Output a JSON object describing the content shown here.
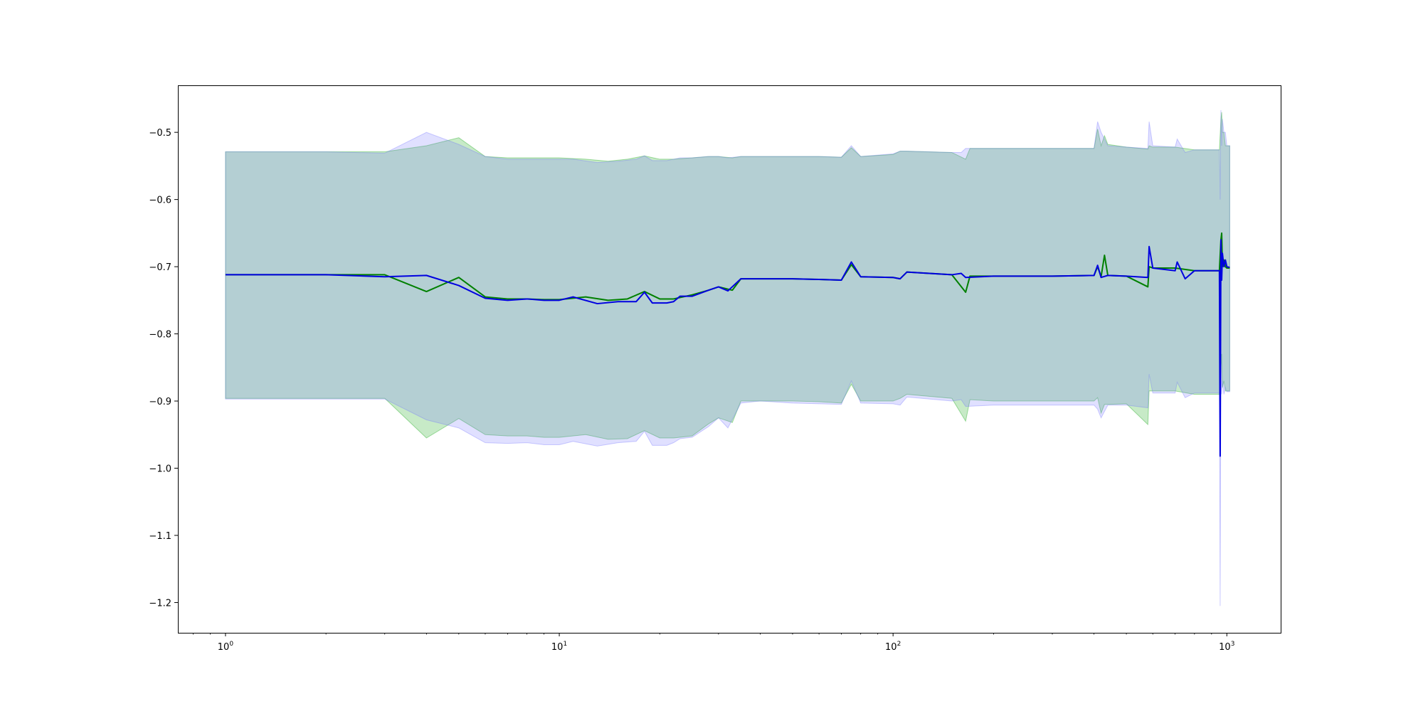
{
  "chart_data": {
    "type": "line",
    "title": "",
    "xlabel": "",
    "ylabel": "",
    "xscale": "log",
    "xlim": [
      0.72,
      1450
    ],
    "ylim": [
      -1.245,
      -0.43
    ],
    "grid": false,
    "legend": "none",
    "x_ticks": [
      {
        "value": 1,
        "base": "10",
        "exp": "0"
      },
      {
        "value": 10,
        "base": "10",
        "exp": "1"
      },
      {
        "value": 100,
        "base": "10",
        "exp": "2"
      },
      {
        "value": 1000,
        "base": "10",
        "exp": "3"
      }
    ],
    "y_ticks": [
      {
        "value": -0.5,
        "label": "−0.5"
      },
      {
        "value": -0.6,
        "label": "−0.6"
      },
      {
        "value": -0.7,
        "label": "−0.7"
      },
      {
        "value": -0.8,
        "label": "−0.8"
      },
      {
        "value": -0.9,
        "label": "−0.9"
      },
      {
        "value": -1.0,
        "label": "−1.0"
      },
      {
        "value": -1.1,
        "label": "−1.1"
      },
      {
        "value": -1.2,
        "label": "−1.2"
      }
    ],
    "series": [
      {
        "color": "#008000",
        "band_color": "#00a000",
        "x": [
          1,
          2,
          3,
          4,
          5,
          6,
          7,
          8,
          9,
          10,
          12,
          14,
          16,
          18,
          20,
          22,
          25,
          28,
          30,
          33,
          35,
          40,
          50,
          60,
          70,
          75,
          80,
          100,
          105,
          110,
          150,
          165,
          170,
          200,
          300,
          400,
          410,
          420,
          430,
          440,
          500,
          580,
          585,
          600,
          700,
          800,
          950,
          960,
          965,
          970,
          980,
          990,
          1000,
          1020
        ],
        "y": [
          -0.712,
          -0.712,
          -0.712,
          -0.737,
          -0.716,
          -0.745,
          -0.748,
          -0.748,
          -0.749,
          -0.749,
          -0.745,
          -0.75,
          -0.748,
          -0.737,
          -0.748,
          -0.748,
          -0.742,
          -0.735,
          -0.73,
          -0.735,
          -0.718,
          -0.718,
          -0.718,
          -0.719,
          -0.72,
          -0.697,
          -0.715,
          -0.716,
          -0.718,
          -0.708,
          -0.712,
          -0.738,
          -0.714,
          -0.714,
          -0.714,
          -0.713,
          -0.7,
          -0.715,
          -0.683,
          -0.713,
          -0.714,
          -0.73,
          -0.7,
          -0.702,
          -0.702,
          -0.706,
          -0.706,
          -0.66,
          -0.65,
          -0.7,
          -0.69,
          -0.7,
          -0.702,
          -0.702
        ],
        "upper": [
          -0.529,
          -0.529,
          -0.529,
          -0.52,
          -0.508,
          -0.536,
          -0.538,
          -0.538,
          -0.538,
          -0.538,
          -0.54,
          -0.543,
          -0.54,
          -0.535,
          -0.54,
          -0.54,
          -0.538,
          -0.536,
          -0.536,
          -0.538,
          -0.536,
          -0.536,
          -0.536,
          -0.536,
          -0.537,
          -0.523,
          -0.536,
          -0.533,
          -0.528,
          -0.528,
          -0.53,
          -0.54,
          -0.524,
          -0.524,
          -0.524,
          -0.524,
          -0.495,
          -0.52,
          -0.505,
          -0.518,
          -0.522,
          -0.525,
          -0.52,
          -0.522,
          -0.522,
          -0.526,
          -0.526,
          -0.48,
          -0.47,
          -0.5,
          -0.5,
          -0.52,
          -0.52,
          -0.52
        ],
        "lower": [
          -0.896,
          -0.896,
          -0.896,
          -0.955,
          -0.926,
          -0.95,
          -0.952,
          -0.952,
          -0.954,
          -0.954,
          -0.95,
          -0.957,
          -0.956,
          -0.944,
          -0.955,
          -0.955,
          -0.952,
          -0.934,
          -0.925,
          -0.932,
          -0.9,
          -0.9,
          -0.9,
          -0.901,
          -0.903,
          -0.875,
          -0.9,
          -0.9,
          -0.896,
          -0.89,
          -0.896,
          -0.93,
          -0.898,
          -0.9,
          -0.9,
          -0.9,
          -0.895,
          -0.918,
          -0.905,
          -0.905,
          -0.904,
          -0.935,
          -0.885,
          -0.885,
          -0.885,
          -0.89,
          -0.89,
          -0.85,
          -0.83,
          -0.88,
          -0.87,
          -0.885,
          -0.885,
          -0.885
        ]
      },
      {
        "color": "#0000e0",
        "band_color": "#7070ff",
        "x": [
          1,
          2,
          3,
          4,
          5,
          6,
          7,
          8,
          9,
          10,
          11,
          13,
          15,
          17,
          18,
          19,
          21,
          22,
          23,
          25,
          28,
          30,
          32,
          35,
          40,
          50,
          60,
          70,
          75,
          80,
          100,
          105,
          110,
          150,
          160,
          165,
          200,
          300,
          400,
          410,
          420,
          440,
          500,
          580,
          585,
          600,
          700,
          710,
          750,
          800,
          950,
          955,
          960,
          965,
          970,
          980,
          990,
          1000,
          1020
        ],
        "y": [
          -0.712,
          -0.712,
          -0.715,
          -0.713,
          -0.728,
          -0.747,
          -0.75,
          -0.748,
          -0.75,
          -0.75,
          -0.745,
          -0.755,
          -0.752,
          -0.752,
          -0.738,
          -0.754,
          -0.754,
          -0.752,
          -0.744,
          -0.744,
          -0.735,
          -0.73,
          -0.736,
          -0.718,
          -0.718,
          -0.718,
          -0.719,
          -0.72,
          -0.693,
          -0.715,
          -0.716,
          -0.718,
          -0.708,
          -0.712,
          -0.71,
          -0.716,
          -0.714,
          -0.714,
          -0.713,
          -0.698,
          -0.716,
          -0.713,
          -0.714,
          -0.716,
          -0.67,
          -0.702,
          -0.706,
          -0.693,
          -0.718,
          -0.706,
          -0.706,
          -0.982,
          -0.66,
          -0.72,
          -0.68,
          -0.7,
          -0.69,
          -0.7,
          -0.701
        ],
        "upper": [
          -0.529,
          -0.529,
          -0.531,
          -0.5,
          -0.518,
          -0.536,
          -0.54,
          -0.54,
          -0.54,
          -0.54,
          -0.54,
          -0.545,
          -0.543,
          -0.54,
          -0.535,
          -0.542,
          -0.542,
          -0.54,
          -0.538,
          -0.538,
          -0.536,
          -0.536,
          -0.538,
          -0.536,
          -0.536,
          -0.536,
          -0.536,
          -0.537,
          -0.52,
          -0.536,
          -0.532,
          -0.528,
          -0.528,
          -0.53,
          -0.53,
          -0.524,
          -0.524,
          -0.524,
          -0.524,
          -0.484,
          -0.5,
          -0.52,
          -0.522,
          -0.524,
          -0.484,
          -0.52,
          -0.522,
          -0.51,
          -0.53,
          -0.526,
          -0.526,
          -0.6,
          -0.467,
          -0.52,
          -0.48,
          -0.5,
          -0.5,
          -0.52,
          -0.52
        ],
        "lower": [
          -0.897,
          -0.897,
          -0.897,
          -0.928,
          -0.94,
          -0.962,
          -0.963,
          -0.962,
          -0.965,
          -0.965,
          -0.96,
          -0.967,
          -0.962,
          -0.96,
          -0.945,
          -0.966,
          -0.966,
          -0.962,
          -0.956,
          -0.954,
          -0.938,
          -0.925,
          -0.94,
          -0.903,
          -0.9,
          -0.903,
          -0.904,
          -0.905,
          -0.87,
          -0.903,
          -0.904,
          -0.906,
          -0.894,
          -0.9,
          -0.898,
          -0.908,
          -0.906,
          -0.906,
          -0.906,
          -0.912,
          -0.925,
          -0.906,
          -0.906,
          -0.91,
          -0.86,
          -0.888,
          -0.888,
          -0.872,
          -0.895,
          -0.888,
          -0.888,
          -1.205,
          -0.83,
          -0.89,
          -0.87,
          -0.89,
          -0.88,
          -0.886,
          -0.886
        ]
      }
    ]
  }
}
